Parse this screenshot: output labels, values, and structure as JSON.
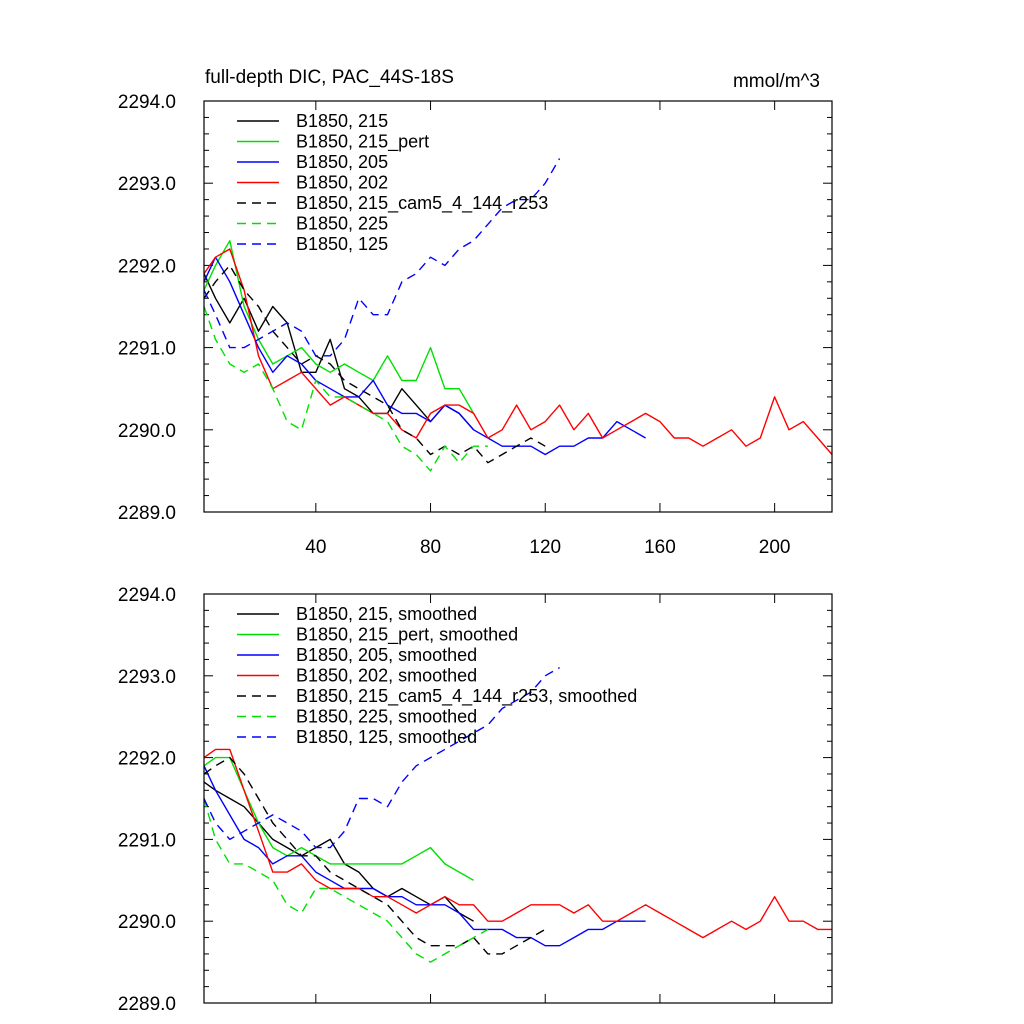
{
  "chart_data": [
    {
      "type": "line",
      "title": "full-depth DIC, PAC_44S-18S",
      "units": "mmol/m^3",
      "xlim": [
        1,
        220
      ],
      "ylim": [
        2289.0,
        2294.0
      ],
      "x_ticks": [
        40,
        80,
        120,
        160,
        200
      ],
      "x_tick_labels": [
        "40",
        "80",
        "120",
        "160",
        "200"
      ],
      "y_ticks": [
        2289,
        2290,
        2291,
        2292,
        2293,
        2294
      ],
      "y_tick_labels": [
        "2289.0",
        "2290.0",
        "2291.0",
        "2292.0",
        "2293.0",
        "2294.0"
      ],
      "legend_position": "top-left",
      "series": [
        {
          "name": "B1850, 215",
          "color": "#000000",
          "dash": "solid",
          "x": [
            1,
            5,
            10,
            15,
            20,
            25,
            30,
            35,
            40,
            45,
            50,
            55,
            60,
            65,
            70,
            75,
            80,
            85,
            90,
            95
          ],
          "y": [
            2291.9,
            2291.6,
            2291.3,
            2291.6,
            2291.2,
            2291.5,
            2291.3,
            2290.7,
            2290.7,
            2291.1,
            2290.5,
            2290.4,
            2290.2,
            2290.2,
            2290.5,
            2290.3,
            2290.1,
            2290.3,
            2290.2,
            2290.0
          ]
        },
        {
          "name": "B1850, 215_pert",
          "color": "#00e000",
          "dash": "solid",
          "x": [
            1,
            5,
            10,
            15,
            20,
            25,
            30,
            35,
            40,
            45,
            50,
            55,
            60,
            65,
            70,
            75,
            80,
            85,
            90,
            95
          ],
          "y": [
            2291.7,
            2292.0,
            2292.3,
            2291.5,
            2291.1,
            2290.8,
            2290.9,
            2291.0,
            2290.8,
            2290.7,
            2290.8,
            2290.7,
            2290.6,
            2290.9,
            2290.6,
            2290.6,
            2291.0,
            2290.5,
            2290.5,
            2290.2
          ]
        },
        {
          "name": "B1850, 205",
          "color": "#0000ff",
          "dash": "solid",
          "x": [
            1,
            5,
            10,
            15,
            20,
            25,
            30,
            35,
            40,
            45,
            50,
            55,
            60,
            65,
            70,
            75,
            80,
            85,
            90,
            95,
            100,
            105,
            110,
            115,
            120,
            125,
            130,
            135,
            140,
            145,
            150,
            155
          ],
          "y": [
            2291.8,
            2292.1,
            2291.8,
            2291.4,
            2291.0,
            2290.7,
            2290.9,
            2290.8,
            2290.6,
            2290.5,
            2290.4,
            2290.4,
            2290.6,
            2290.3,
            2290.2,
            2290.2,
            2290.1,
            2290.3,
            2290.2,
            2290.0,
            2289.9,
            2289.8,
            2289.8,
            2289.8,
            2289.7,
            2289.8,
            2289.8,
            2289.9,
            2289.9,
            2290.1,
            2290.0,
            2289.9
          ]
        },
        {
          "name": "B1850, 202",
          "color": "#ff0000",
          "dash": "solid",
          "x": [
            1,
            5,
            10,
            15,
            20,
            25,
            30,
            35,
            40,
            45,
            50,
            55,
            60,
            65,
            70,
            75,
            80,
            85,
            90,
            95,
            100,
            105,
            110,
            115,
            120,
            125,
            130,
            135,
            140,
            145,
            150,
            155,
            160,
            165,
            170,
            175,
            180,
            185,
            190,
            195,
            200,
            205,
            210,
            215,
            220
          ],
          "y": [
            2291.9,
            2292.1,
            2292.2,
            2291.7,
            2290.9,
            2290.5,
            2290.6,
            2290.7,
            2290.5,
            2290.3,
            2290.4,
            2290.3,
            2290.2,
            2290.2,
            2290.0,
            2289.9,
            2290.2,
            2290.3,
            2290.3,
            2290.2,
            2289.9,
            2290.0,
            2290.3,
            2290.0,
            2290.1,
            2290.3,
            2290.0,
            2290.2,
            2289.9,
            2290.0,
            2290.1,
            2290.2,
            2290.1,
            2289.9,
            2289.9,
            2289.8,
            2289.9,
            2290.0,
            2289.8,
            2289.9,
            2290.4,
            2290.0,
            2290.1,
            2289.9,
            2289.7
          ]
        },
        {
          "name": "B1850, 215_cam5_4_144_r253",
          "color": "#000000",
          "dash": "dashed",
          "x": [
            1,
            5,
            10,
            15,
            20,
            25,
            30,
            35,
            40,
            45,
            50,
            55,
            60,
            65,
            70,
            75,
            80,
            85,
            90,
            95,
            100,
            105,
            110,
            115,
            120
          ],
          "y": [
            2291.6,
            2291.8,
            2292.0,
            2291.7,
            2291.5,
            2291.2,
            2291.0,
            2290.8,
            2290.9,
            2290.8,
            2290.6,
            2290.5,
            2290.4,
            2290.3,
            2290.0,
            2289.9,
            2289.7,
            2289.8,
            2289.7,
            2289.8,
            2289.6,
            2289.7,
            2289.8,
            2289.9,
            2289.8
          ]
        },
        {
          "name": "B1850, 225",
          "color": "#00e000",
          "dash": "dashed",
          "x": [
            1,
            5,
            10,
            15,
            20,
            25,
            30,
            35,
            40,
            45,
            50,
            55,
            60,
            65,
            70,
            75,
            80,
            85,
            90,
            95,
            100
          ],
          "y": [
            2291.5,
            2291.1,
            2290.8,
            2290.7,
            2290.8,
            2290.5,
            2290.1,
            2290.0,
            2290.6,
            2290.4,
            2290.4,
            2290.3,
            2290.2,
            2290.1,
            2289.8,
            2289.7,
            2289.5,
            2289.8,
            2289.6,
            2289.8,
            2289.8
          ]
        },
        {
          "name": "B1850, 125",
          "color": "#0000ff",
          "dash": "dashed",
          "x": [
            1,
            5,
            10,
            15,
            20,
            25,
            30,
            35,
            40,
            45,
            50,
            55,
            60,
            65,
            70,
            75,
            80,
            85,
            90,
            95,
            100,
            105,
            110,
            115,
            120,
            125
          ],
          "y": [
            2291.7,
            2291.4,
            2291.0,
            2291.0,
            2291.1,
            2291.2,
            2291.3,
            2291.2,
            2290.9,
            2290.9,
            2291.1,
            2291.6,
            2291.4,
            2291.4,
            2291.8,
            2291.9,
            2292.1,
            2292.0,
            2292.2,
            2292.3,
            2292.5,
            2292.7,
            2292.8,
            2292.8,
            2293.0,
            2293.3
          ]
        }
      ]
    },
    {
      "type": "line",
      "title": "",
      "xlim": [
        1,
        220
      ],
      "ylim": [
        2289.0,
        2294.0
      ],
      "x_ticks": [
        40,
        80,
        120,
        160,
        200
      ],
      "y_ticks": [
        2289,
        2290,
        2291,
        2292,
        2293,
        2294
      ],
      "y_tick_labels": [
        "2289.0",
        "2290.0",
        "2291.0",
        "2292.0",
        "2293.0",
        "2294.0"
      ],
      "legend_position": "top-left",
      "series": [
        {
          "name": "B1850, 215, smoothed",
          "color": "#000000",
          "dash": "solid",
          "x": [
            1,
            5,
            10,
            15,
            20,
            25,
            30,
            35,
            40,
            45,
            50,
            55,
            60,
            65,
            70,
            75,
            80,
            85,
            90,
            95
          ],
          "y": [
            2291.7,
            2291.6,
            2291.5,
            2291.4,
            2291.2,
            2291.0,
            2290.9,
            2290.8,
            2290.9,
            2291.0,
            2290.7,
            2290.6,
            2290.4,
            2290.3,
            2290.4,
            2290.3,
            2290.2,
            2290.3,
            2290.1,
            2290.0
          ]
        },
        {
          "name": "B1850, 215_pert, smoothed",
          "color": "#00e000",
          "dash": "solid",
          "x": [
            1,
            5,
            10,
            15,
            20,
            25,
            30,
            35,
            40,
            45,
            50,
            55,
            60,
            65,
            70,
            75,
            80,
            85,
            90,
            95
          ],
          "y": [
            2291.9,
            2292.0,
            2292.0,
            2291.6,
            2291.2,
            2290.9,
            2290.8,
            2290.9,
            2290.8,
            2290.7,
            2290.7,
            2290.7,
            2290.7,
            2290.7,
            2290.7,
            2290.8,
            2290.9,
            2290.7,
            2290.6,
            2290.5
          ]
        },
        {
          "name": "B1850, 205, smoothed",
          "color": "#0000ff",
          "dash": "solid",
          "x": [
            1,
            5,
            10,
            15,
            20,
            25,
            30,
            35,
            40,
            45,
            50,
            55,
            60,
            65,
            70,
            75,
            80,
            85,
            90,
            95,
            100,
            105,
            110,
            115,
            120,
            125,
            130,
            135,
            140,
            145,
            150,
            155
          ],
          "y": [
            2291.9,
            2291.6,
            2291.3,
            2291.0,
            2290.9,
            2290.7,
            2290.8,
            2290.8,
            2290.6,
            2290.5,
            2290.4,
            2290.4,
            2290.4,
            2290.3,
            2290.3,
            2290.2,
            2290.2,
            2290.2,
            2290.1,
            2289.9,
            2289.9,
            2289.9,
            2289.8,
            2289.8,
            2289.7,
            2289.7,
            2289.8,
            2289.9,
            2289.9,
            2290.0,
            2290.0,
            2290.0
          ]
        },
        {
          "name": "B1850, 202, smoothed",
          "color": "#ff0000",
          "dash": "solid",
          "x": [
            1,
            5,
            10,
            15,
            20,
            25,
            30,
            35,
            40,
            45,
            50,
            55,
            60,
            65,
            70,
            75,
            80,
            85,
            90,
            95,
            100,
            105,
            110,
            115,
            120,
            125,
            130,
            135,
            140,
            145,
            150,
            155,
            160,
            165,
            170,
            175,
            180,
            185,
            190,
            195,
            200,
            205,
            210,
            215,
            220
          ],
          "y": [
            2292.0,
            2292.1,
            2292.1,
            2291.6,
            2291.1,
            2290.6,
            2290.6,
            2290.7,
            2290.5,
            2290.4,
            2290.4,
            2290.4,
            2290.3,
            2290.3,
            2290.2,
            2290.1,
            2290.2,
            2290.3,
            2290.2,
            2290.2,
            2290.0,
            2290.0,
            2290.1,
            2290.2,
            2290.2,
            2290.2,
            2290.1,
            2290.2,
            2290.0,
            2290.0,
            2290.1,
            2290.2,
            2290.1,
            2290.0,
            2289.9,
            2289.8,
            2289.9,
            2290.0,
            2289.9,
            2290.0,
            2290.3,
            2290.0,
            2290.0,
            2289.9,
            2289.9
          ]
        },
        {
          "name": "B1850, 215_cam5_4_144_r253, smoothed",
          "color": "#000000",
          "dash": "dashed",
          "x": [
            1,
            5,
            10,
            15,
            20,
            25,
            30,
            35,
            40,
            45,
            50,
            55,
            60,
            65,
            70,
            75,
            80,
            85,
            90,
            95,
            100,
            105,
            110,
            115,
            120
          ],
          "y": [
            2291.8,
            2291.9,
            2292.0,
            2291.8,
            2291.5,
            2291.2,
            2291.0,
            2290.8,
            2290.8,
            2290.6,
            2290.5,
            2290.4,
            2290.3,
            2290.2,
            2290.0,
            2289.8,
            2289.7,
            2289.7,
            2289.7,
            2289.8,
            2289.6,
            2289.6,
            2289.7,
            2289.8,
            2289.9
          ]
        },
        {
          "name": "B1850, 225, smoothed",
          "color": "#00e000",
          "dash": "dashed",
          "x": [
            1,
            5,
            10,
            15,
            20,
            25,
            30,
            35,
            40,
            45,
            50,
            55,
            60,
            65,
            70,
            75,
            80,
            85,
            90,
            95,
            100
          ],
          "y": [
            2291.5,
            2291.0,
            2290.7,
            2290.7,
            2290.6,
            2290.5,
            2290.2,
            2290.1,
            2290.4,
            2290.4,
            2290.3,
            2290.2,
            2290.1,
            2290.0,
            2289.8,
            2289.6,
            2289.5,
            2289.6,
            2289.7,
            2289.8,
            2289.9
          ]
        },
        {
          "name": "B1850, 125, smoothed",
          "color": "#0000ff",
          "dash": "dashed",
          "x": [
            1,
            5,
            10,
            15,
            20,
            25,
            30,
            35,
            40,
            45,
            50,
            55,
            60,
            65,
            70,
            75,
            80,
            85,
            90,
            95,
            100,
            105,
            110,
            115,
            120,
            125
          ],
          "y": [
            2291.5,
            2291.2,
            2291.0,
            2291.1,
            2291.2,
            2291.3,
            2291.2,
            2291.1,
            2290.9,
            2290.9,
            2291.1,
            2291.5,
            2291.5,
            2291.4,
            2291.7,
            2291.9,
            2292.0,
            2292.1,
            2292.2,
            2292.3,
            2292.4,
            2292.6,
            2292.7,
            2292.8,
            2293.0,
            2293.1
          ]
        }
      ]
    }
  ]
}
